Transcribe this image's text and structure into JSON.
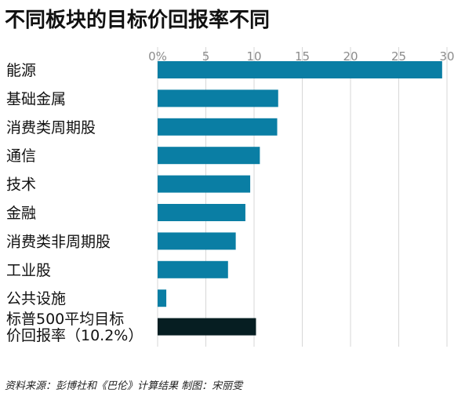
{
  "colors": {
    "bar": "#0a7ea4",
    "highlight_bar": "#061e22",
    "grid": "#d7d7d7",
    "tick_label": "#8c8c8c",
    "label": "#111111"
  },
  "chart_data": {
    "type": "bar",
    "orientation": "horizontal",
    "title": "不同板块的目标价回报率不同",
    "xlabel": "",
    "ylabel": "",
    "xlim": [
      0,
      30
    ],
    "xticks": [
      0,
      5,
      10,
      15,
      20,
      25,
      30
    ],
    "xtick_labels": [
      "0%",
      "5",
      "10",
      "15",
      "20",
      "25",
      "30"
    ],
    "grid": true,
    "categories": [
      [
        "能源"
      ],
      [
        "基础金属"
      ],
      [
        "消费类周期股"
      ],
      [
        "通信"
      ],
      [
        "技术"
      ],
      [
        "金融"
      ],
      [
        "消费类非周期股"
      ],
      [
        "工业股"
      ],
      [
        "公共设施"
      ],
      [
        "标普500平均目标",
        "价回报率（10.2%）"
      ]
    ],
    "values": [
      29.5,
      12.5,
      12.4,
      10.6,
      9.6,
      9.1,
      8.1,
      7.3,
      0.9,
      10.2
    ],
    "highlight": [
      false,
      false,
      false,
      false,
      false,
      false,
      false,
      false,
      false,
      true
    ]
  },
  "source": "资料来源：彭博社和《巴伦》计算结果  制图：宋丽雯"
}
